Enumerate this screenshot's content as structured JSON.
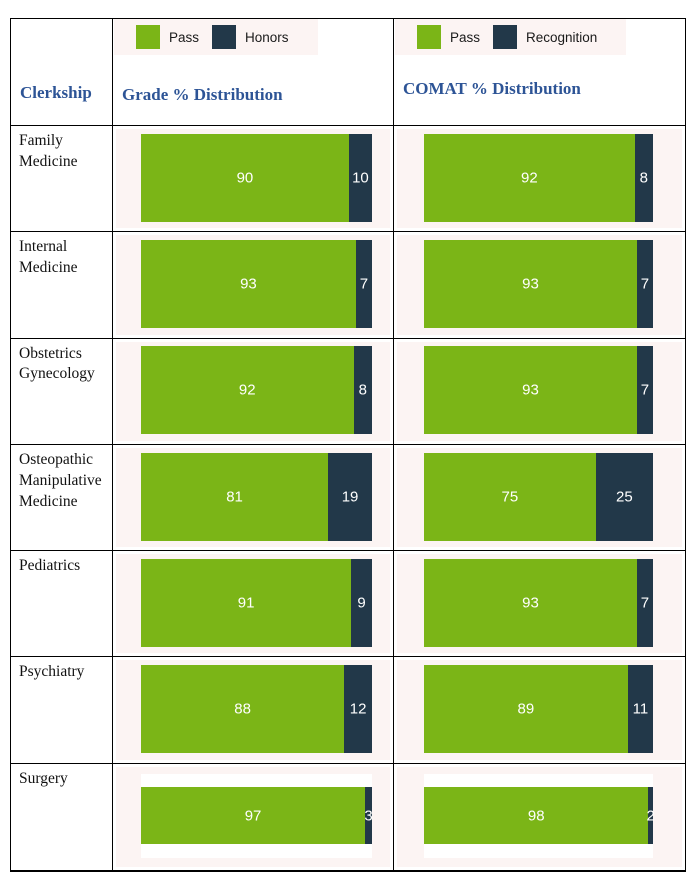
{
  "colors": {
    "pass": "#7BB517",
    "dark": "#223849",
    "chart_background": "#FCF4F3",
    "header_blue": "#2D5496",
    "value_text": "#FFFFFF"
  },
  "table": {
    "header": {
      "clerkship_label": "Clerkship",
      "grade": {
        "title": "Grade % Distribution",
        "legend": [
          {
            "label": "Pass"
          },
          {
            "label": "Honors"
          }
        ]
      },
      "comat": {
        "title": "COMAT % Distribution",
        "legend": [
          {
            "label": "Pass"
          },
          {
            "label": "Recognition"
          }
        ]
      }
    },
    "rows": [
      {
        "label": "Family Medicine",
        "grade": {
          "pass": 90,
          "honors": 10
        },
        "comat": {
          "pass": 92,
          "recognition": 8
        }
      },
      {
        "label": "Internal Medicine",
        "grade": {
          "pass": 93,
          "honors": 7
        },
        "comat": {
          "pass": 93,
          "recognition": 7
        }
      },
      {
        "label": "Obstetrics Gynecology",
        "grade": {
          "pass": 92,
          "honors": 8
        },
        "comat": {
          "pass": 93,
          "recognition": 7
        }
      },
      {
        "label": "Osteopathic Manipulative Medicine",
        "grade": {
          "pass": 81,
          "honors": 19
        },
        "comat": {
          "pass": 75,
          "recognition": 25
        }
      },
      {
        "label": "Pediatrics",
        "grade": {
          "pass": 91,
          "honors": 9
        },
        "comat": {
          "pass": 93,
          "recognition": 7
        }
      },
      {
        "label": "Psychiatry",
        "grade": {
          "pass": 88,
          "honors": 12
        },
        "comat": {
          "pass": 89,
          "recognition": 11
        }
      },
      {
        "label": "Surgery",
        "grade": {
          "pass": 97,
          "honors": 3
        },
        "comat": {
          "pass": 98,
          "recognition": 2
        }
      }
    ]
  },
  "chart_data": [
    {
      "type": "bar",
      "subtype": "stacked-horizontal-100pct",
      "title": "Grade % Distribution",
      "categories": [
        "Family Medicine",
        "Internal Medicine",
        "Obstetrics Gynecology",
        "Osteopathic Manipulative Medicine",
        "Pediatrics",
        "Psychiatry",
        "Surgery"
      ],
      "series": [
        {
          "name": "Pass",
          "color": "#7BB517",
          "values": [
            90,
            93,
            92,
            81,
            91,
            88,
            97
          ]
        },
        {
          "name": "Honors",
          "color": "#223849",
          "values": [
            10,
            7,
            8,
            19,
            9,
            12,
            3
          ]
        }
      ],
      "xlabel": "",
      "ylabel": "",
      "xlim": [
        0,
        100
      ],
      "grid": false,
      "legend_position": "top",
      "data_labels": "inside-center-white"
    },
    {
      "type": "bar",
      "subtype": "stacked-horizontal-100pct",
      "title": "COMAT % Distribution",
      "categories": [
        "Family Medicine",
        "Internal Medicine",
        "Obstetrics Gynecology",
        "Osteopathic Manipulative Medicine",
        "Pediatrics",
        "Psychiatry",
        "Surgery"
      ],
      "series": [
        {
          "name": "Pass",
          "color": "#7BB517",
          "values": [
            92,
            93,
            93,
            75,
            93,
            89,
            98
          ]
        },
        {
          "name": "Recognition",
          "color": "#223849",
          "values": [
            8,
            7,
            7,
            25,
            7,
            11,
            2
          ]
        }
      ],
      "xlabel": "",
      "ylabel": "",
      "xlim": [
        0,
        100
      ],
      "grid": false,
      "legend_position": "top",
      "data_labels": "inside-center-white"
    }
  ]
}
